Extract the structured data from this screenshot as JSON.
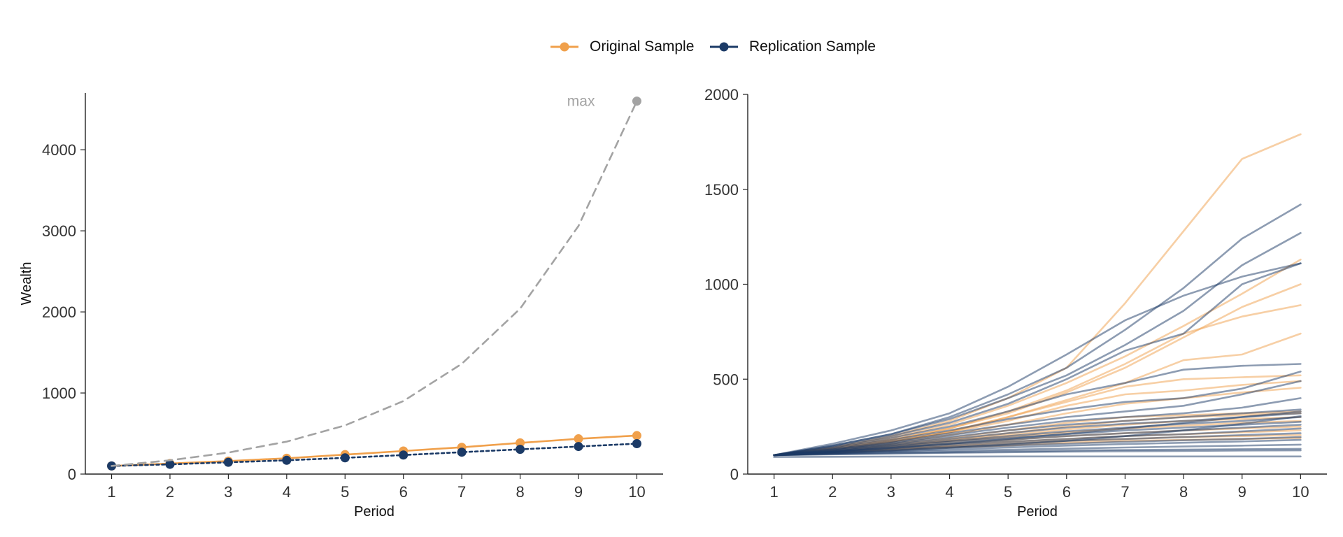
{
  "legend": {
    "original": "Original Sample",
    "replication": "Replication Sample"
  },
  "colors": {
    "original": "#f0a04b",
    "replication": "#1b3a66",
    "max": "#a3a3a3",
    "axis": "#222222"
  },
  "chart_data": [
    {
      "type": "line",
      "title": "",
      "xlabel": "Period",
      "ylabel": "Wealth",
      "x": [
        1,
        2,
        3,
        4,
        5,
        6,
        7,
        8,
        9,
        10
      ],
      "xlim": [
        0.55,
        10.45
      ],
      "ylim": [
        0,
        4700
      ],
      "yticks": [
        0,
        1000,
        2000,
        3000,
        4000
      ],
      "series": [
        {
          "name": "Original Sample",
          "color": "#f0a04b",
          "style": "solid",
          "markers": true,
          "values": [
            100,
            130,
            160,
            195,
            240,
            285,
            330,
            385,
            435,
            475
          ]
        },
        {
          "name": "Replication Sample",
          "color": "#1b3a66",
          "style": "dotted",
          "markers": true,
          "values": [
            100,
            120,
            145,
            170,
            200,
            235,
            270,
            305,
            340,
            375
          ]
        },
        {
          "name": "",
          "color": "#a3a3a3",
          "style": "dashed",
          "markers": false,
          "values": [
            100,
            170,
            265,
            400,
            600,
            900,
            1360,
            2040,
            3060,
            4600
          ]
        }
      ],
      "annotations": [
        {
          "text": "max",
          "x": 10,
          "y": 4600
        }
      ],
      "grid": false
    },
    {
      "type": "line",
      "title": "",
      "xlabel": "Period",
      "ylabel": "",
      "x": [
        1,
        2,
        3,
        4,
        5,
        6,
        7,
        8,
        9,
        10
      ],
      "xlim": [
        0.55,
        10.45
      ],
      "ylim": [
        0,
        2000
      ],
      "yticks": [
        0,
        500,
        1000,
        1500,
        2000
      ],
      "grid": false,
      "series": [
        {
          "group": "original",
          "values": [
            100,
            140,
            200,
            280,
            400,
            560,
            900,
            1280,
            1660,
            1790
          ]
        },
        {
          "group": "original",
          "values": [
            100,
            140,
            190,
            260,
            360,
            480,
            620,
            780,
            950,
            1130
          ]
        },
        {
          "group": "original",
          "values": [
            100,
            135,
            180,
            240,
            330,
            440,
            580,
            740,
            830,
            890
          ]
        },
        {
          "group": "original",
          "values": [
            100,
            135,
            180,
            240,
            320,
            430,
            560,
            720,
            880,
            1000
          ]
        },
        {
          "group": "original",
          "values": [
            100,
            130,
            170,
            225,
            300,
            390,
            480,
            600,
            630,
            740
          ]
        },
        {
          "group": "original",
          "values": [
            100,
            130,
            170,
            220,
            300,
            380,
            460,
            500,
            510,
            520
          ]
        },
        {
          "group": "original",
          "values": [
            100,
            130,
            170,
            220,
            280,
            360,
            420,
            440,
            470,
            490
          ]
        },
        {
          "group": "original",
          "values": [
            100,
            125,
            160,
            205,
            260,
            320,
            370,
            400,
            430,
            455
          ]
        },
        {
          "group": "original",
          "values": [
            100,
            125,
            155,
            190,
            230,
            270,
            300,
            310,
            320,
            330
          ]
        },
        {
          "group": "original",
          "values": [
            100,
            120,
            150,
            180,
            215,
            250,
            280,
            300,
            310,
            320
          ]
        },
        {
          "group": "original",
          "values": [
            100,
            120,
            145,
            175,
            205,
            235,
            260,
            280,
            290,
            300
          ]
        },
        {
          "group": "original",
          "values": [
            100,
            120,
            140,
            170,
            195,
            220,
            240,
            255,
            270,
            280
          ]
        },
        {
          "group": "original",
          "values": [
            100,
            115,
            135,
            160,
            180,
            200,
            215,
            230,
            240,
            250
          ]
        },
        {
          "group": "original",
          "values": [
            100,
            115,
            130,
            150,
            170,
            185,
            200,
            210,
            220,
            230
          ]
        },
        {
          "group": "original",
          "values": [
            100,
            115,
            130,
            145,
            160,
            175,
            185,
            195,
            200,
            205
          ]
        },
        {
          "group": "original",
          "values": [
            100,
            110,
            125,
            140,
            150,
            165,
            175,
            180,
            185,
            190
          ]
        },
        {
          "group": "replication",
          "values": [
            100,
            160,
            230,
            320,
            460,
            630,
            810,
            940,
            1040,
            1110
          ]
        },
        {
          "group": "replication",
          "values": [
            100,
            150,
            210,
            300,
            420,
            560,
            760,
            980,
            1240,
            1420
          ]
        },
        {
          "group": "replication",
          "values": [
            100,
            150,
            210,
            290,
            400,
            520,
            680,
            860,
            1100,
            1270
          ]
        },
        {
          "group": "replication",
          "values": [
            100,
            145,
            200,
            270,
            370,
            500,
            650,
            740,
            1000,
            1110
          ]
        },
        {
          "group": "replication",
          "values": [
            100,
            140,
            190,
            250,
            330,
            420,
            480,
            550,
            570,
            580
          ]
        },
        {
          "group": "replication",
          "values": [
            100,
            135,
            180,
            230,
            290,
            340,
            380,
            400,
            450,
            540
          ]
        },
        {
          "group": "replication",
          "values": [
            100,
            130,
            170,
            215,
            260,
            300,
            330,
            360,
            420,
            490
          ]
        },
        {
          "group": "replication",
          "values": [
            100,
            130,
            165,
            205,
            245,
            280,
            300,
            320,
            350,
            400
          ]
        },
        {
          "group": "replication",
          "values": [
            100,
            125,
            160,
            195,
            230,
            260,
            280,
            300,
            320,
            340
          ]
        },
        {
          "group": "replication",
          "values": [
            100,
            125,
            155,
            185,
            215,
            245,
            265,
            280,
            300,
            320
          ]
        },
        {
          "group": "replication",
          "values": [
            100,
            120,
            150,
            175,
            200,
            225,
            245,
            265,
            280,
            300
          ]
        },
        {
          "group": "replication",
          "values": [
            100,
            120,
            145,
            170,
            190,
            210,
            230,
            245,
            260,
            275
          ]
        },
        {
          "group": "replication",
          "values": [
            100,
            118,
            140,
            160,
            180,
            200,
            215,
            230,
            245,
            260
          ]
        },
        {
          "group": "replication",
          "values": [
            100,
            115,
            135,
            155,
            170,
            185,
            200,
            210,
            225,
            240
          ]
        },
        {
          "group": "replication",
          "values": [
            100,
            115,
            130,
            145,
            160,
            175,
            185,
            195,
            205,
            215
          ]
        },
        {
          "group": "replication",
          "values": [
            100,
            112,
            125,
            140,
            150,
            160,
            170,
            178,
            185,
            195
          ]
        },
        {
          "group": "replication",
          "values": [
            100,
            110,
            120,
            130,
            140,
            150,
            158,
            165,
            172,
            180
          ]
        },
        {
          "group": "replication",
          "values": [
            100,
            108,
            115,
            122,
            128,
            134,
            140,
            145,
            150,
            155
          ]
        },
        {
          "group": "replication",
          "values": [
            100,
            105,
            110,
            115,
            120,
            124,
            127,
            129,
            131,
            133
          ]
        },
        {
          "group": "replication",
          "values": [
            100,
            104,
            108,
            112,
            115,
            118,
            120,
            122,
            124,
            125
          ]
        },
        {
          "group": "replication",
          "values": [
            90,
            91,
            92,
            92,
            93,
            93,
            93,
            93,
            93,
            93
          ]
        },
        {
          "group": "replication",
          "values": [
            100,
            110,
            122,
            138,
            155,
            175,
            200,
            230,
            265,
            305
          ]
        },
        {
          "group": "replication",
          "values": [
            100,
            118,
            138,
            160,
            185,
            212,
            240,
            270,
            300,
            330
          ]
        }
      ]
    }
  ]
}
